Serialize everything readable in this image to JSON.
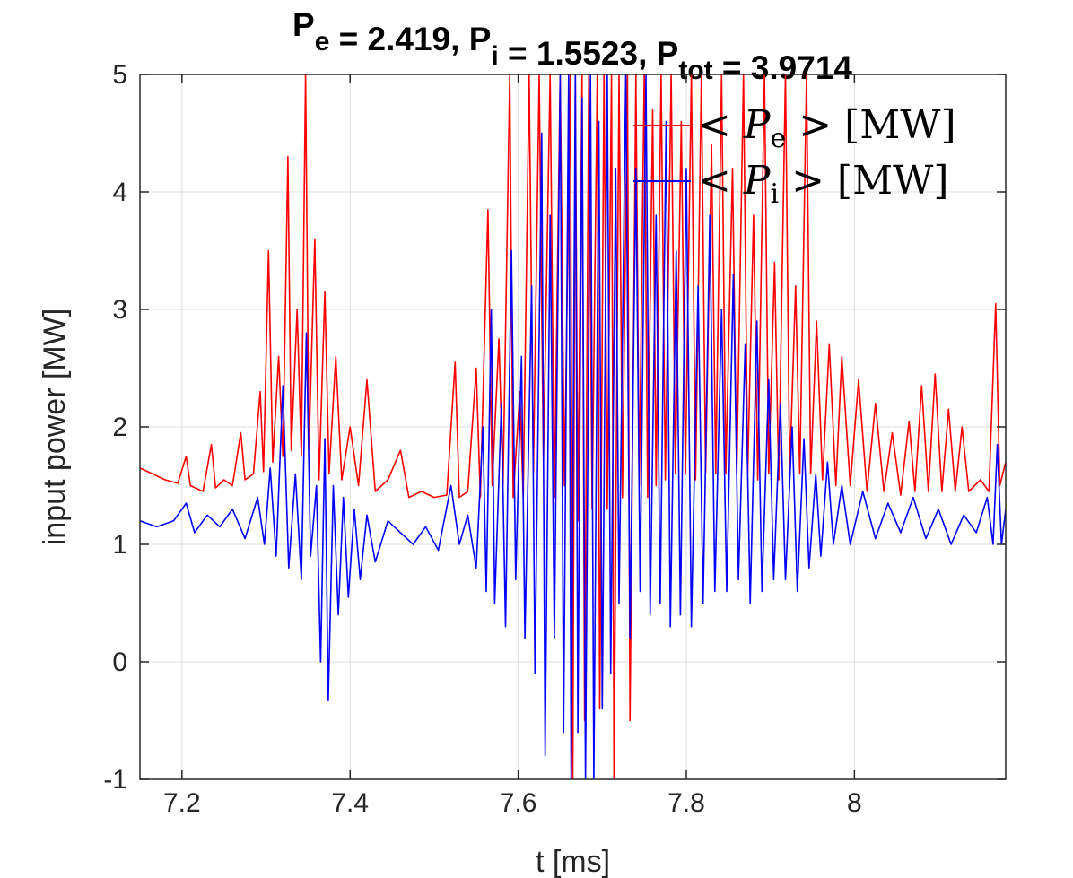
{
  "chart_data": {
    "type": "line",
    "title": {
      "parts": [
        {
          "text": "P",
          "sub": "e"
        },
        {
          "text": " = 2.419, "
        },
        {
          "text": "P",
          "sub": "i"
        },
        {
          "text": " = 1.5523, "
        },
        {
          "text": "P",
          "sub": "tot"
        },
        {
          "text": " = 3.9714"
        }
      ],
      "P_e": 2.419,
      "P_i": 1.5523,
      "P_tot": 3.9714
    },
    "xlabel": "t [ms]",
    "ylabel": "input power [MW]",
    "xlim": [
      7.15,
      8.18
    ],
    "ylim": [
      -1,
      5
    ],
    "xticks": [
      7.2,
      7.4,
      7.6,
      7.8,
      8
    ],
    "xtick_labels": [
      "7.2",
      "7.4",
      "7.6",
      "7.8",
      "8"
    ],
    "yticks": [
      -1,
      0,
      1,
      2,
      3,
      4,
      5
    ],
    "ytick_labels": [
      "-1",
      "0",
      "1",
      "2",
      "3",
      "4",
      "5"
    ],
    "grid": true,
    "legend_position": "top-right",
    "series": [
      {
        "name": "Pe",
        "legend": {
          "pre": "< ",
          "sym": "P",
          "sub": "e",
          "post": " > [MW]"
        },
        "color": "#ff0000",
        "points": [
          [
            7.15,
            1.65
          ],
          [
            7.165,
            1.6
          ],
          [
            7.18,
            1.55
          ],
          [
            7.195,
            1.52
          ],
          [
            7.205,
            1.75
          ],
          [
            7.21,
            1.5
          ],
          [
            7.225,
            1.45
          ],
          [
            7.235,
            1.85
          ],
          [
            7.24,
            1.48
          ],
          [
            7.25,
            1.55
          ],
          [
            7.26,
            1.5
          ],
          [
            7.27,
            1.95
          ],
          [
            7.275,
            1.55
          ],
          [
            7.285,
            1.6
          ],
          [
            7.293,
            2.3
          ],
          [
            7.297,
            1.62
          ],
          [
            7.303,
            3.5
          ],
          [
            7.308,
            1.7
          ],
          [
            7.315,
            2.6
          ],
          [
            7.32,
            1.75
          ],
          [
            7.326,
            4.3
          ],
          [
            7.33,
            1.8
          ],
          [
            7.337,
            3.0
          ],
          [
            7.342,
            1.75
          ],
          [
            7.347,
            5.0
          ],
          [
            7.351,
            1.8
          ],
          [
            7.358,
            3.6
          ],
          [
            7.363,
            1.55
          ],
          [
            7.37,
            3.15
          ],
          [
            7.375,
            1.6
          ],
          [
            7.383,
            2.6
          ],
          [
            7.39,
            1.55
          ],
          [
            7.4,
            2.0
          ],
          [
            7.41,
            1.5
          ],
          [
            7.42,
            2.4
          ],
          [
            7.43,
            1.45
          ],
          [
            7.445,
            1.55
          ],
          [
            7.46,
            1.8
          ],
          [
            7.47,
            1.4
          ],
          [
            7.485,
            1.45
          ],
          [
            7.5,
            1.4
          ],
          [
            7.515,
            1.42
          ],
          [
            7.525,
            2.55
          ],
          [
            7.53,
            1.4
          ],
          [
            7.54,
            1.45
          ],
          [
            7.55,
            2.5
          ],
          [
            7.555,
            1.4
          ],
          [
            7.564,
            3.85
          ],
          [
            7.569,
            1.5
          ],
          [
            7.577,
            2.75
          ],
          [
            7.582,
            1.5
          ],
          [
            7.59,
            5.0
          ],
          [
            7.594,
            1.4
          ],
          [
            7.602,
            2.3
          ],
          [
            7.606,
            1.4
          ],
          [
            7.613,
            5.0
          ],
          [
            7.618,
            1.6
          ],
          [
            7.625,
            5.0
          ],
          [
            7.63,
            1.7
          ],
          [
            7.638,
            5.0
          ],
          [
            7.643,
            1.4
          ],
          [
            7.65,
            5.0
          ],
          [
            7.655,
            1.5
          ],
          [
            7.662,
            5.0
          ],
          [
            7.665,
            -1.0
          ],
          [
            7.668,
            5.0
          ],
          [
            7.671,
            1.2
          ],
          [
            7.676,
            5.0
          ],
          [
            7.679,
            -0.5
          ],
          [
            7.684,
            5.0
          ],
          [
            7.688,
            1.3
          ],
          [
            7.694,
            5.0
          ],
          [
            7.697,
            -0.4
          ],
          [
            7.702,
            5.0
          ],
          [
            7.706,
            1.3
          ],
          [
            7.711,
            5.0
          ],
          [
            7.714,
            -1.0
          ],
          [
            7.72,
            5.0
          ],
          [
            7.724,
            1.4
          ],
          [
            7.73,
            5.0
          ],
          [
            7.733,
            -0.5
          ],
          [
            7.74,
            5.0
          ],
          [
            7.744,
            1.5
          ],
          [
            7.75,
            5.0
          ],
          [
            7.754,
            1.4
          ],
          [
            7.76,
            4.7
          ],
          [
            7.764,
            1.5
          ],
          [
            7.77,
            5.0
          ],
          [
            7.775,
            1.55
          ],
          [
            7.782,
            5.0
          ],
          [
            7.787,
            1.6
          ],
          [
            7.794,
            4.6
          ],
          [
            7.799,
            1.6
          ],
          [
            7.806,
            5.0
          ],
          [
            7.811,
            1.55
          ],
          [
            7.818,
            5.0
          ],
          [
            7.823,
            1.6
          ],
          [
            7.83,
            4.4
          ],
          [
            7.835,
            1.6
          ],
          [
            7.842,
            5.0
          ],
          [
            7.847,
            1.6
          ],
          [
            7.855,
            4.2
          ],
          [
            7.86,
            1.6
          ],
          [
            7.868,
            5.0
          ],
          [
            7.873,
            1.6
          ],
          [
            7.88,
            3.8
          ],
          [
            7.885,
            1.55
          ],
          [
            7.893,
            5.0
          ],
          [
            7.898,
            1.6
          ],
          [
            7.905,
            3.4
          ],
          [
            7.91,
            1.55
          ],
          [
            7.918,
            5.0
          ],
          [
            7.923,
            1.6
          ],
          [
            7.93,
            3.2
          ],
          [
            7.935,
            1.6
          ],
          [
            7.943,
            5.0
          ],
          [
            7.948,
            1.6
          ],
          [
            7.955,
            2.9
          ],
          [
            7.962,
            1.55
          ],
          [
            7.97,
            2.7
          ],
          [
            7.978,
            1.5
          ],
          [
            7.985,
            2.6
          ],
          [
            7.995,
            1.5
          ],
          [
            8.005,
            2.4
          ],
          [
            8.015,
            1.45
          ],
          [
            8.025,
            2.2
          ],
          [
            8.035,
            1.45
          ],
          [
            8.045,
            1.95
          ],
          [
            8.055,
            1.42
          ],
          [
            8.065,
            2.05
          ],
          [
            8.072,
            1.45
          ],
          [
            8.08,
            2.35
          ],
          [
            8.088,
            1.45
          ],
          [
            8.096,
            2.45
          ],
          [
            8.104,
            1.45
          ],
          [
            8.112,
            2.15
          ],
          [
            8.12,
            1.45
          ],
          [
            8.128,
            2.0
          ],
          [
            8.136,
            1.45
          ],
          [
            8.15,
            1.55
          ],
          [
            8.16,
            1.45
          ],
          [
            8.168,
            3.05
          ],
          [
            8.173,
            1.5
          ],
          [
            8.18,
            1.7
          ]
        ]
      },
      {
        "name": "Pi",
        "legend": {
          "pre": "< ",
          "sym": "P",
          "sub": "i",
          "post": " > [MW]"
        },
        "color": "#0000ff",
        "points": [
          [
            7.15,
            1.2
          ],
          [
            7.17,
            1.15
          ],
          [
            7.19,
            1.2
          ],
          [
            7.205,
            1.35
          ],
          [
            7.215,
            1.1
          ],
          [
            7.23,
            1.25
          ],
          [
            7.245,
            1.15
          ],
          [
            7.26,
            1.3
          ],
          [
            7.275,
            1.05
          ],
          [
            7.29,
            1.4
          ],
          [
            7.298,
            1.0
          ],
          [
            7.305,
            1.65
          ],
          [
            7.312,
            0.9
          ],
          [
            7.32,
            2.35
          ],
          [
            7.327,
            0.8
          ],
          [
            7.335,
            1.6
          ],
          [
            7.342,
            0.7
          ],
          [
            7.348,
            2.8
          ],
          [
            7.353,
            0.9
          ],
          [
            7.36,
            1.5
          ],
          [
            7.365,
            0.0
          ],
          [
            7.37,
            1.9
          ],
          [
            7.374,
            -0.33
          ],
          [
            7.38,
            1.5
          ],
          [
            7.386,
            0.4
          ],
          [
            7.392,
            1.4
          ],
          [
            7.398,
            0.55
          ],
          [
            7.405,
            1.3
          ],
          [
            7.412,
            0.7
          ],
          [
            7.42,
            1.25
          ],
          [
            7.43,
            0.85
          ],
          [
            7.445,
            1.2
          ],
          [
            7.46,
            1.1
          ],
          [
            7.475,
            1.0
          ],
          [
            7.49,
            1.15
          ],
          [
            7.505,
            0.95
          ],
          [
            7.52,
            1.5
          ],
          [
            7.53,
            1.0
          ],
          [
            7.54,
            1.25
          ],
          [
            7.55,
            0.8
          ],
          [
            7.558,
            2.0
          ],
          [
            7.562,
            0.6
          ],
          [
            7.568,
            3.0
          ],
          [
            7.572,
            0.5
          ],
          [
            7.58,
            2.2
          ],
          [
            7.585,
            0.3
          ],
          [
            7.592,
            3.5
          ],
          [
            7.597,
            0.7
          ],
          [
            7.604,
            2.6
          ],
          [
            7.608,
            0.2
          ],
          [
            7.616,
            3.2
          ],
          [
            7.62,
            -0.1
          ],
          [
            7.628,
            4.5
          ],
          [
            7.632,
            -0.8
          ],
          [
            7.638,
            3.8
          ],
          [
            7.643,
            0.2
          ],
          [
            7.65,
            5.0
          ],
          [
            7.654,
            -0.6
          ],
          [
            7.66,
            5.0
          ],
          [
            7.663,
            -1.0
          ],
          [
            7.668,
            5.0
          ],
          [
            7.671,
            -0.6
          ],
          [
            7.676,
            4.8
          ],
          [
            7.68,
            -1.0
          ],
          [
            7.686,
            5.0
          ],
          [
            7.69,
            -1.0
          ],
          [
            7.696,
            4.6
          ],
          [
            7.7,
            -0.4
          ],
          [
            7.706,
            5.0
          ],
          [
            7.71,
            -0.1
          ],
          [
            7.716,
            4.2
          ],
          [
            7.72,
            0.5
          ],
          [
            7.728,
            5.0
          ],
          [
            7.733,
            0.2
          ],
          [
            7.74,
            4.2
          ],
          [
            7.745,
            0.6
          ],
          [
            7.752,
            5.0
          ],
          [
            7.757,
            0.4
          ],
          [
            7.764,
            3.8
          ],
          [
            7.769,
            0.5
          ],
          [
            7.776,
            4.6
          ],
          [
            7.781,
            0.3
          ],
          [
            7.788,
            3.5
          ],
          [
            7.793,
            0.4
          ],
          [
            7.8,
            4.2
          ],
          [
            7.806,
            0.3
          ],
          [
            7.814,
            3.2
          ],
          [
            7.82,
            0.5
          ],
          [
            7.828,
            3.8
          ],
          [
            7.834,
            0.6
          ],
          [
            7.842,
            3.0
          ],
          [
            7.848,
            0.6
          ],
          [
            7.856,
            3.3
          ],
          [
            7.862,
            0.7
          ],
          [
            7.87,
            2.7
          ],
          [
            7.876,
            0.5
          ],
          [
            7.884,
            2.9
          ],
          [
            7.89,
            0.6
          ],
          [
            7.898,
            2.4
          ],
          [
            7.904,
            0.7
          ],
          [
            7.912,
            2.2
          ],
          [
            7.918,
            0.7
          ],
          [
            7.926,
            2.0
          ],
          [
            7.932,
            0.6
          ],
          [
            7.94,
            1.9
          ],
          [
            7.946,
            0.8
          ],
          [
            7.954,
            1.6
          ],
          [
            7.96,
            0.9
          ],
          [
            7.968,
            1.7
          ],
          [
            7.975,
            1.0
          ],
          [
            7.985,
            1.5
          ],
          [
            7.995,
            1.0
          ],
          [
            8.01,
            1.45
          ],
          [
            8.025,
            1.05
          ],
          [
            8.04,
            1.35
          ],
          [
            8.055,
            1.1
          ],
          [
            8.07,
            1.4
          ],
          [
            8.085,
            1.05
          ],
          [
            8.1,
            1.3
          ],
          [
            8.115,
            1.0
          ],
          [
            8.13,
            1.25
          ],
          [
            8.145,
            1.1
          ],
          [
            8.158,
            1.4
          ],
          [
            8.165,
            1.0
          ],
          [
            8.17,
            1.85
          ],
          [
            8.175,
            1.0
          ],
          [
            8.18,
            1.3
          ]
        ]
      }
    ]
  }
}
